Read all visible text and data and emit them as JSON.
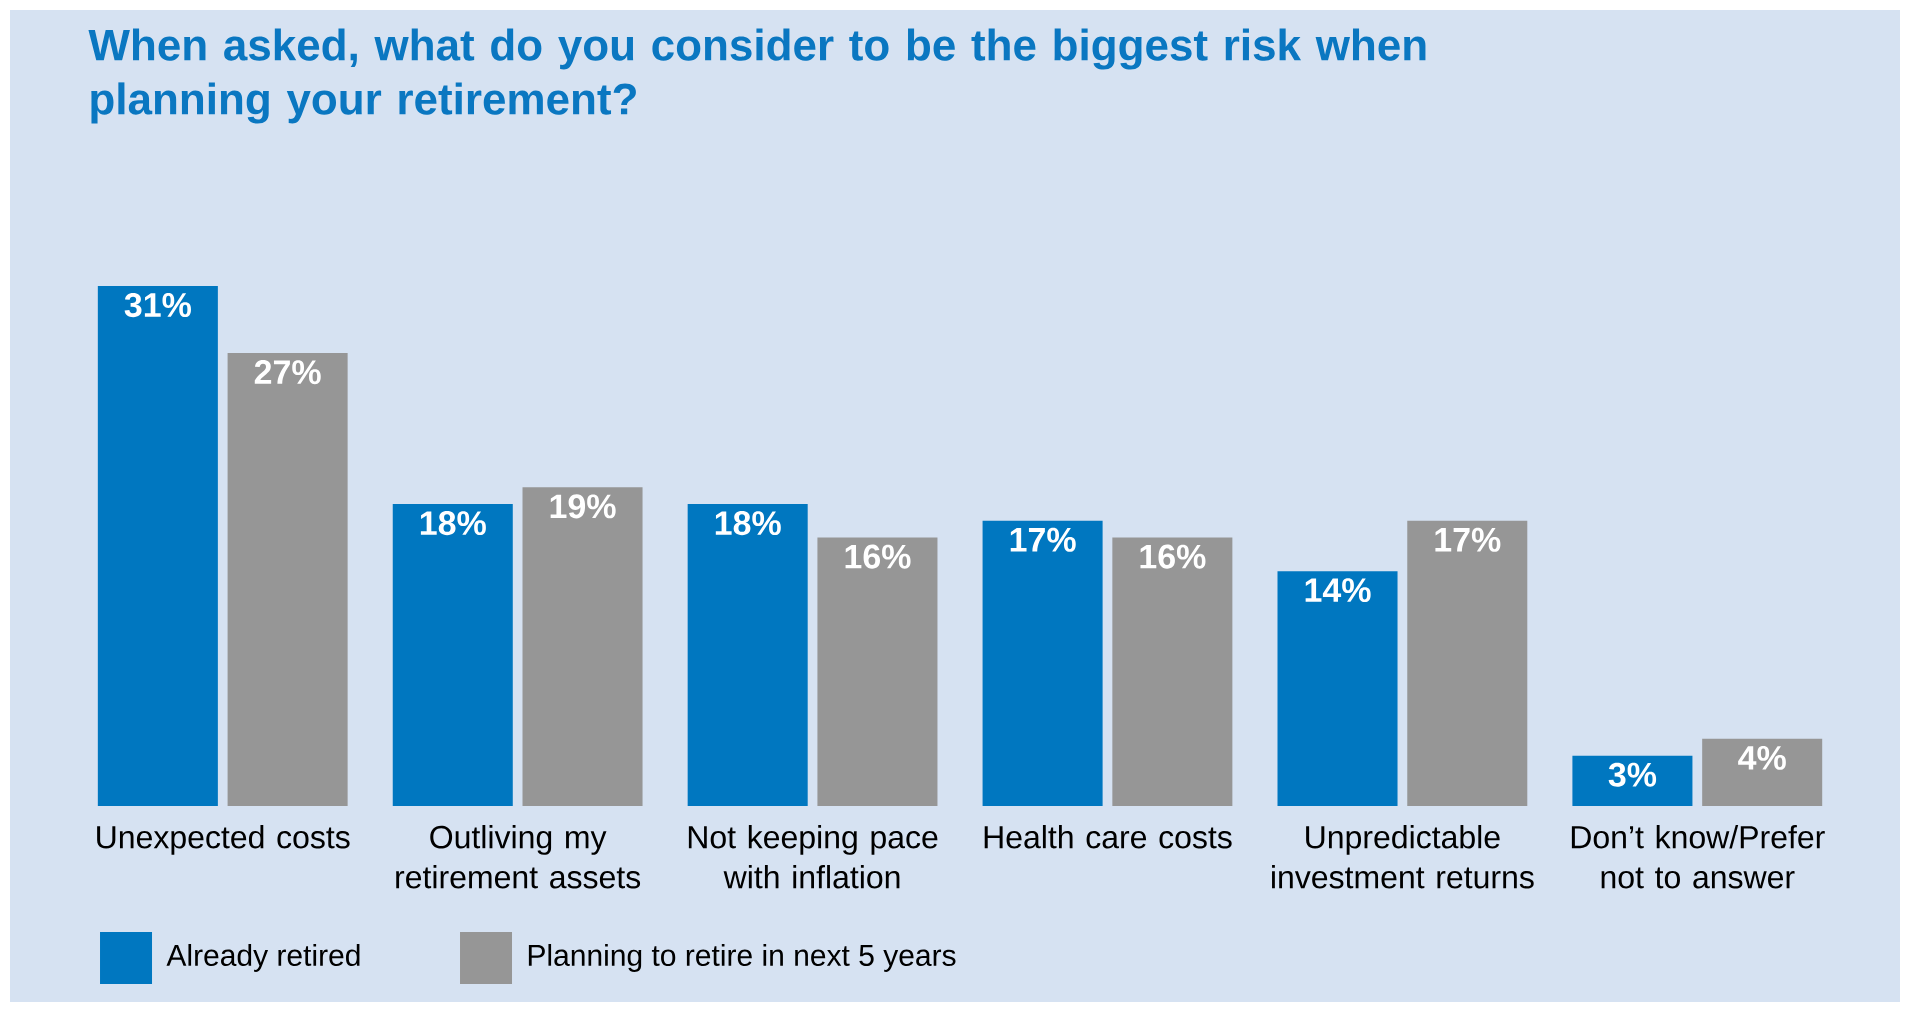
{
  "chart_data": {
    "type": "bar",
    "title": "When asked, what do you consider to be the biggest risk when planning your retirement?",
    "categories": [
      "Unexpected costs",
      "Outliving my retirement assets",
      "Not keeping pace with inflation",
      "Health care costs",
      "Unpredictable investment returns",
      "Don’t know/Prefer not to answer"
    ],
    "series": [
      {
        "name": "Already retired",
        "color": "#0077c0",
        "values": [
          31,
          18,
          18,
          17,
          14,
          3
        ],
        "value_labels": [
          "31%",
          "18%",
          "18%",
          "17%",
          "14%",
          "3%"
        ]
      },
      {
        "name": "Planning to retire in next 5 years",
        "color": "#969696",
        "values": [
          27,
          19,
          16,
          16,
          17,
          4
        ],
        "value_labels": [
          "27%",
          "19%",
          "16%",
          "16%",
          "17%",
          "4%"
        ]
      }
    ],
    "legend": "bottom left"
  }
}
